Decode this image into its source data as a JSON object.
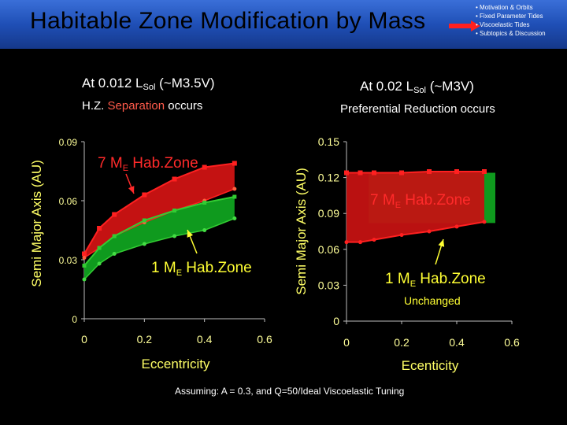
{
  "header": {
    "title": "Habitable Zone Modification by Mass",
    "nav": [
      "• Motivation & Orbits",
      "• Fixed Parameter Tides",
      "• Viscoelastic Tides",
      "• Subtopics & Discussion"
    ]
  },
  "colors": {
    "red_zone": "#c41212",
    "green_zone": "#0f9a1e",
    "red_line": "#ff2020",
    "green_line": "#33cc33",
    "tick": "#ffff99",
    "axis_label": "#ffff66"
  },
  "left_panel": {
    "heading_pre": "At 0.012 L",
    "heading_sub": "Sol",
    "heading_post": " (~M3.5V)",
    "sub_pre": "H.Z. ",
    "sub_red": "Separation",
    "sub_post": " occurs"
  },
  "right_panel": {
    "heading_pre": "At 0.02 L",
    "heading_sub": "Sol",
    "heading_post": " (~M3V)",
    "sub": "Preferential Reduction occurs"
  },
  "footnote": "Assuming: A = 0.3,  and Q=50/Ideal Viscoelastic Tuning",
  "chart_data": [
    {
      "type": "area",
      "xlabel": "Eccentricity",
      "ylabel": "Semi Major Axis (AU)",
      "xlim": [
        0,
        0.6
      ],
      "ylim": [
        0,
        0.09
      ],
      "xticks": [
        "0",
        "0.2",
        "0.4",
        "0.6"
      ],
      "yticks": [
        "0",
        "0.03",
        "0.06",
        "0.09"
      ],
      "annotations": [
        {
          "pre": "7 M",
          "sub": "E",
          "post": " Hab.Zone",
          "color": "red"
        },
        {
          "pre": "1 M",
          "sub": "E",
          "post": " Hab.Zone",
          "color": "yellow"
        }
      ],
      "series": [
        {
          "name": "7 ME Hab.Zone",
          "x": [
            0,
            0.05,
            0.1,
            0.2,
            0.3,
            0.4,
            0.5
          ],
          "upper": [
            0.033,
            0.046,
            0.053,
            0.063,
            0.071,
            0.077,
            0.079
          ],
          "lower": [
            0.031,
            0.036,
            0.042,
            0.049,
            0.055,
            0.06,
            0.066
          ]
        },
        {
          "name": "1 ME Hab.Zone",
          "x": [
            0,
            0.05,
            0.1,
            0.2,
            0.3,
            0.4,
            0.5
          ],
          "upper": [
            0.027,
            0.036,
            0.042,
            0.05,
            0.055,
            0.059,
            0.062
          ],
          "lower": [
            0.02,
            0.028,
            0.033,
            0.038,
            0.042,
            0.045,
            0.051
          ]
        }
      ]
    },
    {
      "type": "area",
      "xlabel": "Ecenticity",
      "ylabel": "Semi Major Axis (AU)",
      "xlim": [
        0,
        0.6
      ],
      "ylim": [
        0,
        0.15
      ],
      "xticks": [
        "0",
        "0.2",
        "0.4",
        "0.6"
      ],
      "yticks": [
        "0",
        "0.03",
        "0.06",
        "0.09",
        "0.12",
        "0.15"
      ],
      "annotations": [
        {
          "pre": "7 M",
          "sub": "E",
          "post": " Hab.Zone",
          "color": "red"
        },
        {
          "pre": "1 M",
          "sub": "E",
          "post": " Hab.Zone",
          "color": "yellow"
        },
        {
          "text": "Unchanged",
          "color": "yellow"
        }
      ],
      "series": [
        {
          "name": "7 ME Hab.Zone",
          "x": [
            0,
            0.05,
            0.1,
            0.2,
            0.3,
            0.4,
            0.5
          ],
          "upper": [
            0.124,
            0.124,
            0.124,
            0.124,
            0.125,
            0.125,
            0.125
          ],
          "lower": [
            0.066,
            0.066,
            0.068,
            0.072,
            0.075,
            0.079,
            0.083
          ]
        },
        {
          "name": "1 ME Hab.Zone",
          "x": [
            0.08,
            0.1,
            0.2,
            0.3,
            0.4,
            0.5
          ],
          "upper": [
            0.124,
            0.124,
            0.124,
            0.124,
            0.124,
            0.124
          ],
          "lower": [
            0.082,
            0.082,
            0.082,
            0.082,
            0.082,
            0.082
          ]
        }
      ]
    }
  ]
}
